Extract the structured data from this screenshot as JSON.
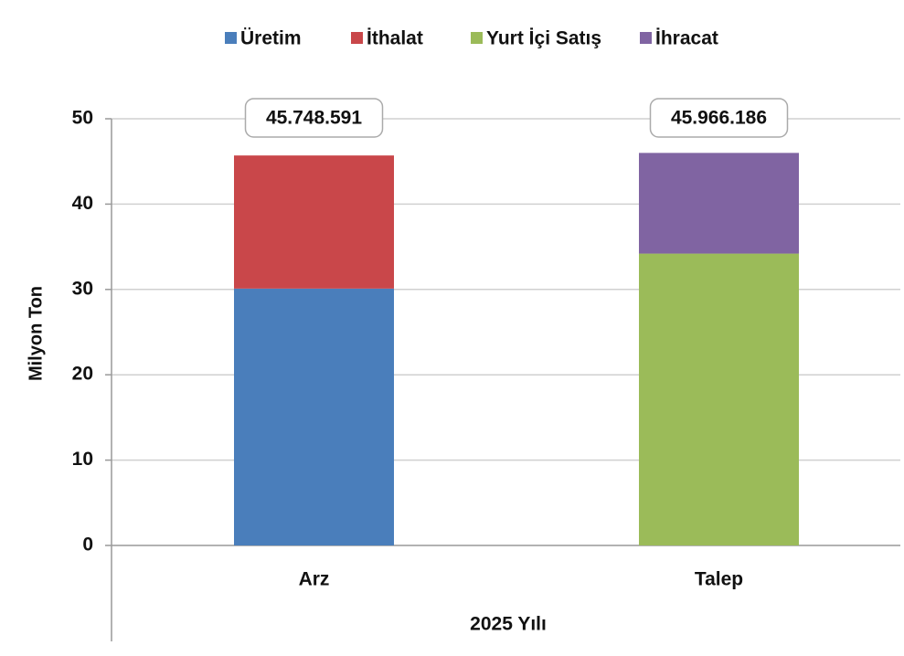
{
  "chart_data": {
    "type": "stacked_bar",
    "categories": [
      "Arz",
      "Talep"
    ],
    "series": [
      {
        "name": "Üretim",
        "color": "#4a7ebb",
        "values": [
          30.1,
          null
        ]
      },
      {
        "name": "İthalat",
        "color": "#c9474a",
        "values": [
          15.6,
          null
        ]
      },
      {
        "name": "Yurt İçi Satış",
        "color": "#9bbb59",
        "values": [
          null,
          34.2
        ]
      },
      {
        "name": "İhracat",
        "color": "#8064a2",
        "values": [
          null,
          11.8
        ]
      }
    ],
    "total_labels": [
      "45.748.591",
      "45.966.186"
    ],
    "ylabel": "Milyon Ton",
    "xlabel": "2025 Yılı",
    "ylim": [
      0,
      50
    ],
    "yticks": [
      0,
      10,
      20,
      30,
      40,
      50
    ],
    "grid": true,
    "legend": "top"
  }
}
